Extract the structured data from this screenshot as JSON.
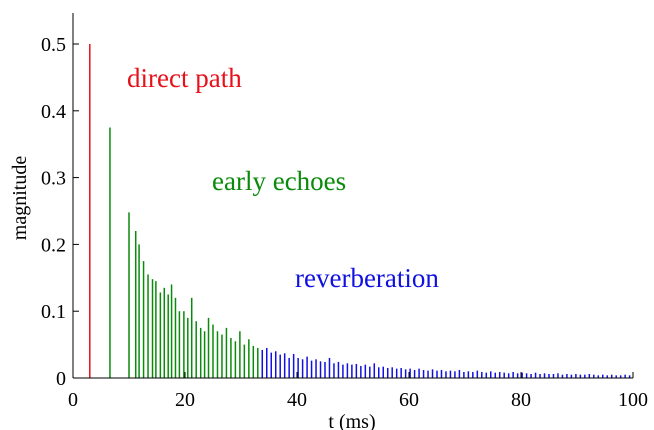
{
  "chart_data": {
    "type": "bar",
    "xlabel": "t (ms)",
    "ylabel": "magnitude",
    "xlim": [
      0,
      100
    ],
    "ylim": [
      0,
      0.55
    ],
    "xticks": [
      "0",
      "20",
      "40",
      "60",
      "80",
      "100"
    ],
    "yticks": [
      "0",
      "0.1",
      "0.2",
      "0.3",
      "0.4",
      "0.5"
    ],
    "grid": false,
    "annotations": [
      {
        "text": "direct path",
        "color": "#e8101a"
      },
      {
        "text": "early echoes",
        "color": "#0a8a0a"
      },
      {
        "text": "reverberation",
        "color": "#1010e0"
      }
    ],
    "series": [
      {
        "color": "#e8101a",
        "x": [
          3.0
        ],
        "values": [
          0.5
        ]
      },
      {
        "color": "#0a8a0a",
        "x": [
          6.6,
          10.0,
          11.2,
          11.8,
          12.6,
          13.4,
          14.2,
          14.8,
          15.6,
          16.3,
          17.0,
          17.6,
          18.3,
          19.0,
          19.8,
          20.5,
          21.2,
          22.0,
          22.8,
          23.5,
          24.2,
          25.0,
          25.8,
          26.6,
          27.4,
          28.2,
          29.0,
          29.8,
          30.6,
          31.4,
          32.2,
          33.0
        ],
        "values": [
          0.375,
          0.248,
          0.22,
          0.2,
          0.175,
          0.155,
          0.148,
          0.145,
          0.128,
          0.135,
          0.125,
          0.14,
          0.12,
          0.1,
          0.1,
          0.09,
          0.12,
          0.085,
          0.075,
          0.07,
          0.09,
          0.08,
          0.07,
          0.065,
          0.075,
          0.06,
          0.055,
          0.07,
          0.05,
          0.058,
          0.048,
          0.045
        ]
      },
      {
        "color": "#1010e0",
        "x": [
          33.8,
          34.6,
          35.4,
          36.2,
          37.0,
          37.8,
          38.6,
          39.4,
          40.2,
          41.0,
          41.8,
          42.6,
          43.4,
          44.2,
          45.0,
          45.8,
          46.6,
          47.4,
          48.2,
          49.0,
          49.8,
          50.6,
          51.4,
          52.2,
          53.0,
          53.8,
          54.6,
          55.4,
          56.2,
          57.0,
          57.8,
          58.6,
          59.4,
          60.2,
          61.0,
          61.8,
          62.6,
          63.4,
          64.2,
          65.0,
          65.8,
          66.6,
          67.4,
          68.2,
          69.0,
          69.8,
          70.6,
          71.4,
          72.2,
          73.0,
          73.8,
          74.6,
          75.4,
          76.2,
          77.0,
          77.8,
          78.6,
          79.4,
          80.2,
          81.0,
          81.8,
          82.6,
          83.4,
          84.2,
          85.0,
          85.8,
          86.6,
          87.4,
          88.2,
          89.0,
          89.8,
          90.6,
          91.4,
          92.2,
          93.0,
          93.8,
          94.6,
          95.4,
          96.2,
          97.0,
          97.8,
          98.6,
          99.4
        ],
        "values": [
          0.042,
          0.045,
          0.038,
          0.04,
          0.035,
          0.037,
          0.03,
          0.036,
          0.03,
          0.028,
          0.032,
          0.026,
          0.028,
          0.025,
          0.024,
          0.03,
          0.022,
          0.024,
          0.02,
          0.022,
          0.02,
          0.021,
          0.018,
          0.02,
          0.017,
          0.022,
          0.016,
          0.017,
          0.015,
          0.016,
          0.014,
          0.015,
          0.013,
          0.014,
          0.012,
          0.014,
          0.012,
          0.011,
          0.013,
          0.011,
          0.012,
          0.01,
          0.011,
          0.01,
          0.012,
          0.009,
          0.01,
          0.009,
          0.011,
          0.009,
          0.008,
          0.01,
          0.008,
          0.009,
          0.008,
          0.007,
          0.009,
          0.007,
          0.008,
          0.007,
          0.006,
          0.008,
          0.006,
          0.007,
          0.006,
          0.006,
          0.007,
          0.005,
          0.006,
          0.005,
          0.006,
          0.005,
          0.005,
          0.006,
          0.005,
          0.004,
          0.005,
          0.004,
          0.005,
          0.004,
          0.004,
          0.005,
          0.004
        ]
      }
    ]
  }
}
